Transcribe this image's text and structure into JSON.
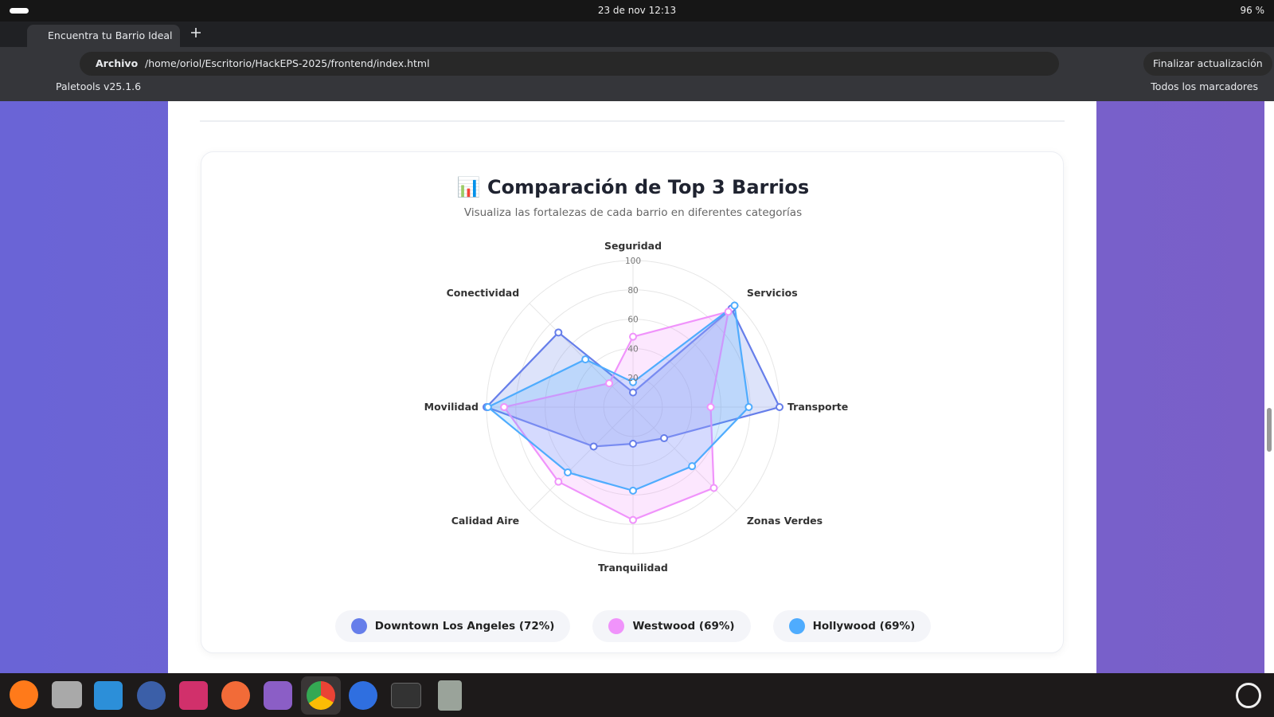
{
  "system_bar": {
    "datetime": "23 de nov  12:13",
    "battery": "96 %"
  },
  "browser": {
    "tab_title": "Encuentra tu Barrio Ideal",
    "security": "Archivo",
    "url": "/home/oriol/Escritorio/HackEPS-2025/frontend/index.html",
    "update_button": "Finalizar actualización",
    "bookmark": "Paletools v25.1.6",
    "all_bookmarks": "Todos los marcadores"
  },
  "chart_data": {
    "type": "radar",
    "icon": "📊",
    "title": "Comparación de Top 3 Barrios",
    "subtitle": "Visualiza las fortalezas de cada barrio en diferentes categorías",
    "categories": [
      "Seguridad",
      "Servicios",
      "Transporte",
      "Zonas Verdes",
      "Tranquilidad",
      "Calidad Aire",
      "Movilidad",
      "Conectividad"
    ],
    "rlim": [
      0,
      100
    ],
    "rticks": [
      20,
      40,
      60,
      80,
      100
    ],
    "grid": true,
    "series": [
      {
        "name": "Downtown Los Angeles (72%)",
        "color": "#667eea",
        "values": [
          10,
          95,
          100,
          30,
          25,
          38,
          100,
          72
        ]
      },
      {
        "name": "Westwood (69%)",
        "color": "#f093fb",
        "values": [
          48,
          92,
          53,
          78,
          77,
          72,
          88,
          23
        ]
      },
      {
        "name": "Hollywood (69%)",
        "color": "#4facfe",
        "values": [
          17,
          98,
          79,
          57,
          57,
          63,
          99,
          46
        ]
      }
    ]
  }
}
